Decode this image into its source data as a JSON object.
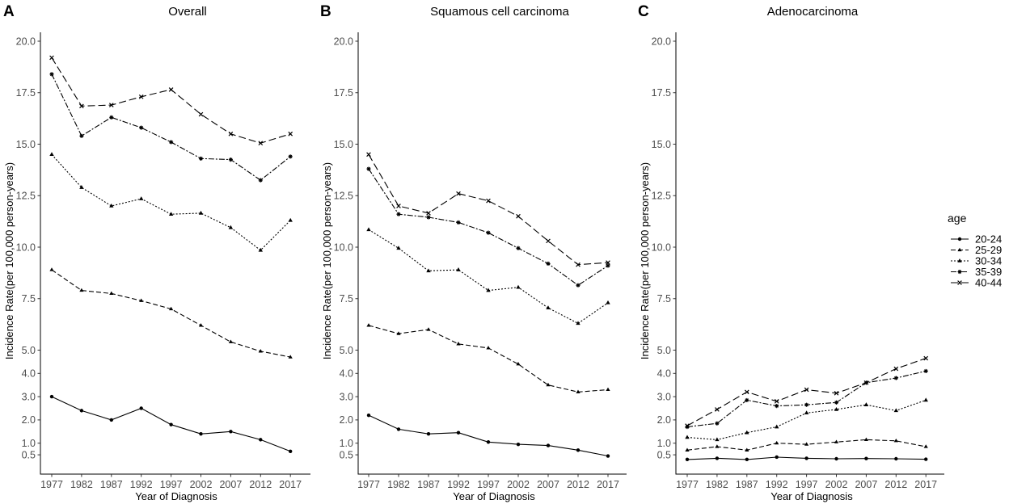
{
  "chart_data": [
    {
      "type": "line",
      "panel_label": "A",
      "title": "Overall",
      "xlabel": "Year of Diagnosis",
      "ylabel": "Incidence Rate(per 100,000 person-years)",
      "categories": [
        "1977",
        "1982",
        "1987",
        "1992",
        "1997",
        "2002",
        "2007",
        "2012",
        "2017"
      ],
      "y_ticks": [
        "0.5",
        "1.0",
        "2.0",
        "3.0",
        "4.0",
        "5.0",
        "7.5",
        "10.0",
        "12.5",
        "15.0",
        "17.5",
        "20.0"
      ],
      "series": [
        {
          "name": "20-24",
          "values": [
            3.0,
            2.4,
            2.0,
            2.5,
            1.8,
            1.4,
            1.5,
            1.15,
            0.65
          ]
        },
        {
          "name": "25-29",
          "values": [
            8.9,
            7.9,
            7.75,
            7.4,
            7.0,
            6.2,
            5.4,
            4.95,
            4.7
          ]
        },
        {
          "name": "30-34",
          "values": [
            14.5,
            12.9,
            12.0,
            12.35,
            11.6,
            11.65,
            10.95,
            9.85,
            11.3
          ]
        },
        {
          "name": "35-39",
          "values": [
            18.4,
            15.4,
            16.3,
            15.8,
            15.1,
            14.3,
            14.25,
            13.25,
            14.4
          ]
        },
        {
          "name": "40-44",
          "values": [
            19.2,
            16.85,
            16.9,
            17.3,
            17.65,
            16.45,
            15.5,
            15.05,
            15.5
          ]
        }
      ]
    },
    {
      "type": "line",
      "panel_label": "B",
      "title": "Squamous cell carcinoma",
      "xlabel": "Year of Diagnosis",
      "ylabel": "Incidence Rate(per 100,000 person-years)",
      "categories": [
        "1977",
        "1982",
        "1987",
        "1992",
        "1997",
        "2002",
        "2007",
        "2012",
        "2017"
      ],
      "y_ticks": [
        "0.5",
        "1.0",
        "2.0",
        "3.0",
        "4.0",
        "5.0",
        "7.5",
        "10.0",
        "12.5",
        "15.0",
        "17.5",
        "20.0"
      ],
      "series": [
        {
          "name": "20-24",
          "values": [
            2.2,
            1.6,
            1.4,
            1.45,
            1.05,
            0.95,
            0.9,
            0.7,
            0.45
          ]
        },
        {
          "name": "25-29",
          "values": [
            6.2,
            5.8,
            6.0,
            5.3,
            5.1,
            4.4,
            3.5,
            3.2,
            3.3
          ]
        },
        {
          "name": "30-34",
          "values": [
            10.85,
            9.95,
            8.85,
            8.9,
            7.9,
            8.05,
            7.05,
            6.3,
            7.3
          ]
        },
        {
          "name": "35-39",
          "values": [
            13.8,
            11.6,
            11.45,
            11.2,
            10.7,
            9.95,
            9.2,
            8.15,
            9.1
          ]
        },
        {
          "name": "40-44",
          "values": [
            14.5,
            12.0,
            11.65,
            12.6,
            12.25,
            11.5,
            10.3,
            9.15,
            9.25
          ]
        }
      ]
    },
    {
      "type": "line",
      "panel_label": "C",
      "title": "Adenocarcinoma",
      "xlabel": "Year of Diagnosis",
      "ylabel": "Incidence Rate(per 100,000 person-years)",
      "categories": [
        "1977",
        "1982",
        "1987",
        "1992",
        "1997",
        "2002",
        "2007",
        "2012",
        "2017"
      ],
      "y_ticks": [
        "0.5",
        "1.0",
        "2.0",
        "3.0",
        "4.0",
        "5.0",
        "7.5",
        "10.0",
        "12.5",
        "15.0",
        "17.5",
        "20.0"
      ],
      "series": [
        {
          "name": "20-24",
          "values": [
            0.3,
            0.35,
            0.3,
            0.4,
            0.35,
            0.33,
            0.34,
            0.33,
            0.31
          ]
        },
        {
          "name": "25-29",
          "values": [
            0.7,
            0.85,
            0.7,
            1.0,
            0.95,
            1.05,
            1.15,
            1.1,
            0.85
          ]
        },
        {
          "name": "30-34",
          "values": [
            1.25,
            1.15,
            1.45,
            1.7,
            2.3,
            2.45,
            2.65,
            2.4,
            2.85
          ]
        },
        {
          "name": "35-39",
          "values": [
            1.7,
            1.85,
            2.85,
            2.6,
            2.65,
            2.75,
            3.6,
            3.8,
            4.1
          ]
        },
        {
          "name": "40-44",
          "values": [
            1.75,
            2.45,
            3.2,
            2.8,
            3.3,
            3.15,
            3.6,
            4.2,
            4.65
          ]
        }
      ]
    }
  ],
  "legend": {
    "title": "age",
    "items": [
      "20-24",
      "25-29",
      "30-34",
      "35-39",
      "40-44"
    ]
  },
  "colors": {
    "line": "#000000",
    "axis": "#000000",
    "tick_text": "#4d4d4d",
    "background": "#ffffff"
  }
}
